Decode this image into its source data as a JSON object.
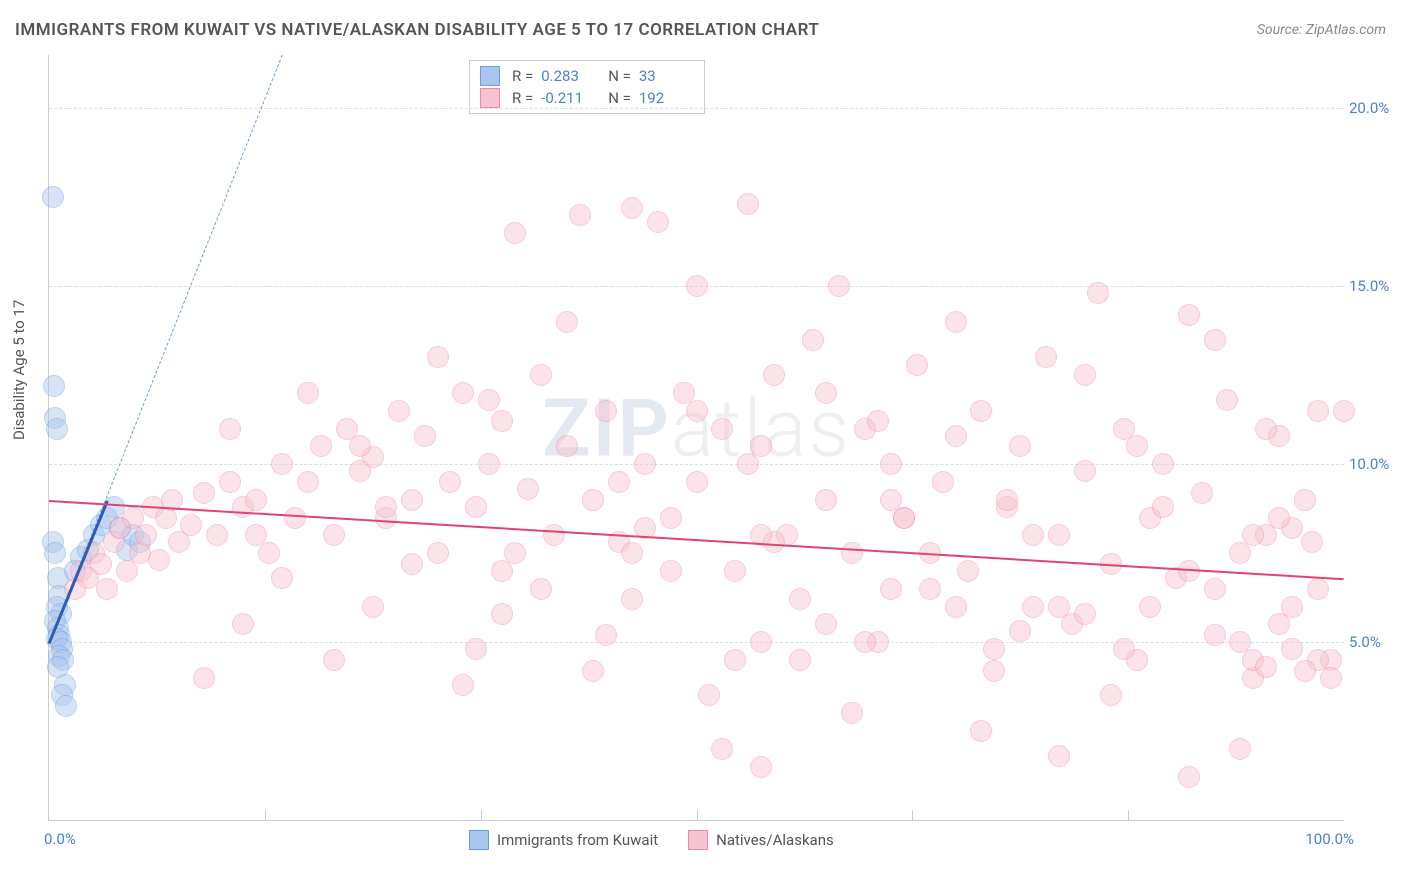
{
  "title": "IMMIGRANTS FROM KUWAIT VS NATIVE/ALASKAN DISABILITY AGE 5 TO 17 CORRELATION CHART",
  "source": "Source: ZipAtlas.com",
  "y_axis_label": "Disability Age 5 to 17",
  "watermark": {
    "left": "ZIP",
    "right": "atlas"
  },
  "plot": {
    "x_domain": [
      0,
      100
    ],
    "y_domain": [
      0,
      21.5
    ],
    "y_ticks": [
      5.0,
      10.0,
      15.0,
      20.0
    ],
    "y_tick_labels": [
      "5.0%",
      "10.0%",
      "15.0%",
      "20.0%"
    ],
    "x_ticks_minor": [
      16.67,
      33.33,
      50.0,
      66.67,
      83.33
    ],
    "x_tick_first": "0.0%",
    "x_tick_last": "100.0%",
    "grid_color": "#dddddd",
    "point_radius": 10,
    "point_opacity": 0.45
  },
  "series": [
    {
      "id": "kuwait",
      "label": "Immigrants from Kuwait",
      "color_fill": "#a8c5ed",
      "color_stroke": "#6a9be0",
      "R": "0.283",
      "N": "33",
      "trend": {
        "x1": 0,
        "y1": 5.0,
        "x2": 4.5,
        "y2": 9.0,
        "color": "#2d5db2",
        "width": 3
      },
      "trend_dashed": {
        "x1": 0,
        "y1": 5.0,
        "x2": 18,
        "y2": 21.5,
        "color": "#6a9be0"
      },
      "points": [
        [
          0.3,
          17.5
        ],
        [
          0.4,
          12.2
        ],
        [
          0.5,
          11.3
        ],
        [
          0.6,
          11.0
        ],
        [
          0.3,
          7.8
        ],
        [
          0.5,
          7.5
        ],
        [
          0.7,
          6.8
        ],
        [
          0.8,
          6.3
        ],
        [
          0.6,
          6.0
        ],
        [
          0.9,
          5.8
        ],
        [
          0.5,
          5.6
        ],
        [
          0.7,
          5.4
        ],
        [
          0.8,
          5.2
        ],
        [
          0.6,
          5.1
        ],
        [
          0.9,
          5.0
        ],
        [
          1.0,
          4.8
        ],
        [
          0.8,
          4.6
        ],
        [
          1.1,
          4.5
        ],
        [
          0.7,
          4.3
        ],
        [
          1.2,
          3.8
        ],
        [
          1.0,
          3.5
        ],
        [
          1.3,
          3.2
        ],
        [
          2.0,
          7.0
        ],
        [
          2.5,
          7.4
        ],
        [
          3.0,
          7.6
        ],
        [
          3.5,
          8.0
        ],
        [
          4.0,
          8.3
        ],
        [
          4.5,
          8.5
        ],
        [
          5.0,
          8.8
        ],
        [
          5.5,
          8.2
        ],
        [
          6.0,
          7.6
        ],
        [
          6.5,
          8.0
        ],
        [
          7.0,
          7.8
        ]
      ]
    },
    {
      "id": "natives",
      "label": "Natives/Alaskans",
      "color_fill": "#f7c2cf",
      "color_stroke": "#ed8ba6",
      "R": "-0.211",
      "N": "192",
      "trend": {
        "x1": 0,
        "y1": 9.0,
        "x2": 100,
        "y2": 6.8,
        "color": "#e0446f",
        "width": 2
      },
      "points": [
        [
          2,
          6.5
        ],
        [
          2.5,
          7.0
        ],
        [
          3,
          6.8
        ],
        [
          3.5,
          7.5
        ],
        [
          4,
          7.2
        ],
        [
          4.5,
          6.5
        ],
        [
          5,
          7.8
        ],
        [
          5.5,
          8.2
        ],
        [
          6,
          7.0
        ],
        [
          6.5,
          8.5
        ],
        [
          7,
          7.5
        ],
        [
          7.5,
          8.0
        ],
        [
          8,
          8.8
        ],
        [
          8.5,
          7.3
        ],
        [
          9,
          8.5
        ],
        [
          9.5,
          9.0
        ],
        [
          10,
          7.8
        ],
        [
          11,
          8.3
        ],
        [
          12,
          9.2
        ],
        [
          13,
          8.0
        ],
        [
          14,
          9.5
        ],
        [
          15,
          8.8
        ],
        [
          16,
          9.0
        ],
        [
          17,
          7.5
        ],
        [
          18,
          10.0
        ],
        [
          19,
          8.5
        ],
        [
          20,
          9.5
        ],
        [
          21,
          10.5
        ],
        [
          22,
          8.0
        ],
        [
          23,
          11.0
        ],
        [
          24,
          9.8
        ],
        [
          25,
          10.2
        ],
        [
          26,
          8.5
        ],
        [
          27,
          11.5
        ],
        [
          28,
          9.0
        ],
        [
          29,
          10.8
        ],
        [
          30,
          7.5
        ],
        [
          31,
          9.5
        ],
        [
          32,
          12.0
        ],
        [
          33,
          8.8
        ],
        [
          34,
          10.0
        ],
        [
          35,
          11.2
        ],
        [
          36,
          16.5
        ],
        [
          37,
          9.3
        ],
        [
          38,
          12.5
        ],
        [
          39,
          8.0
        ],
        [
          40,
          10.5
        ],
        [
          41,
          17.0
        ],
        [
          42,
          9.0
        ],
        [
          43,
          11.5
        ],
        [
          44,
          7.8
        ],
        [
          45,
          17.2
        ],
        [
          46,
          10.0
        ],
        [
          47,
          16.8
        ],
        [
          48,
          8.5
        ],
        [
          49,
          12.0
        ],
        [
          50,
          9.5
        ],
        [
          51,
          3.5
        ],
        [
          52,
          11.0
        ],
        [
          53,
          7.0
        ],
        [
          54,
          17.3
        ],
        [
          55,
          10.5
        ],
        [
          56,
          12.5
        ],
        [
          57,
          8.0
        ],
        [
          58,
          4.5
        ],
        [
          59,
          13.5
        ],
        [
          60,
          9.0
        ],
        [
          61,
          15.0
        ],
        [
          62,
          7.5
        ],
        [
          63,
          11.0
        ],
        [
          64,
          5.0
        ],
        [
          65,
          10.0
        ],
        [
          66,
          8.5
        ],
        [
          67,
          12.8
        ],
        [
          68,
          6.5
        ],
        [
          69,
          9.5
        ],
        [
          70,
          14.0
        ],
        [
          71,
          7.0
        ],
        [
          72,
          11.5
        ],
        [
          73,
          4.8
        ],
        [
          74,
          8.8
        ],
        [
          75,
          10.5
        ],
        [
          76,
          6.0
        ],
        [
          77,
          13.0
        ],
        [
          78,
          8.0
        ],
        [
          79,
          5.5
        ],
        [
          80,
          9.8
        ],
        [
          81,
          14.8
        ],
        [
          82,
          7.2
        ],
        [
          83,
          11.0
        ],
        [
          84,
          4.5
        ],
        [
          85,
          8.5
        ],
        [
          86,
          10.0
        ],
        [
          87,
          6.8
        ],
        [
          88,
          14.2
        ],
        [
          89,
          9.2
        ],
        [
          90,
          5.2
        ],
        [
          91,
          11.8
        ],
        [
          92,
          7.5
        ],
        [
          93,
          4.0
        ],
        [
          94,
          8.0
        ],
        [
          95,
          10.8
        ],
        [
          96,
          6.0
        ],
        [
          97,
          9.0
        ],
        [
          98,
          11.5
        ],
        [
          99,
          4.5
        ],
        [
          97.5,
          7.8
        ],
        [
          15,
          5.5
        ],
        [
          25,
          6.0
        ],
        [
          35,
          5.8
        ],
        [
          45,
          6.2
        ],
        [
          55,
          5.0
        ],
        [
          65,
          6.5
        ],
        [
          75,
          5.3
        ],
        [
          85,
          6.0
        ],
        [
          95,
          5.5
        ],
        [
          20,
          12.0
        ],
        [
          30,
          13.0
        ],
        [
          40,
          14.0
        ],
        [
          50,
          11.5
        ],
        [
          60,
          12.0
        ],
        [
          70,
          10.8
        ],
        [
          80,
          12.5
        ],
        [
          90,
          13.5
        ],
        [
          12,
          4.0
        ],
        [
          22,
          4.5
        ],
        [
          32,
          3.8
        ],
        [
          42,
          4.2
        ],
        [
          52,
          2.0
        ],
        [
          62,
          3.0
        ],
        [
          72,
          2.5
        ],
        [
          82,
          3.5
        ],
        [
          92,
          2.0
        ],
        [
          18,
          6.8
        ],
        [
          28,
          7.2
        ],
        [
          38,
          6.5
        ],
        [
          48,
          7.0
        ],
        [
          58,
          6.2
        ],
        [
          68,
          7.5
        ],
        [
          78,
          6.0
        ],
        [
          88,
          7.0
        ],
        [
          98,
          6.5
        ],
        [
          14,
          11.0
        ],
        [
          24,
          10.5
        ],
        [
          34,
          11.8
        ],
        [
          44,
          9.5
        ],
        [
          54,
          10.0
        ],
        [
          64,
          11.2
        ],
        [
          74,
          9.0
        ],
        [
          84,
          10.5
        ],
        [
          94,
          11.0
        ],
        [
          16,
          8.0
        ],
        [
          26,
          8.8
        ],
        [
          36,
          7.5
        ],
        [
          46,
          8.2
        ],
        [
          56,
          7.8
        ],
        [
          66,
          8.5
        ],
        [
          76,
          8.0
        ],
        [
          86,
          8.8
        ],
        [
          96,
          8.2
        ],
        [
          55,
          1.5
        ],
        [
          78,
          1.8
        ],
        [
          88,
          1.2
        ],
        [
          33,
          4.8
        ],
        [
          43,
          5.2
        ],
        [
          53,
          4.5
        ],
        [
          63,
          5.0
        ],
        [
          73,
          4.2
        ],
        [
          83,
          4.8
        ],
        [
          93,
          4.5
        ],
        [
          50,
          15.0
        ],
        [
          60,
          5.5
        ],
        [
          70,
          6.0
        ],
        [
          80,
          5.8
        ],
        [
          90,
          6.5
        ],
        [
          35,
          7.0
        ],
        [
          45,
          7.5
        ],
        [
          55,
          8.0
        ],
        [
          65,
          9.0
        ],
        [
          100,
          11.5
        ],
        [
          99,
          4.0
        ],
        [
          98,
          4.5
        ],
        [
          97,
          4.2
        ],
        [
          96,
          4.8
        ],
        [
          95,
          8.5
        ],
        [
          94,
          4.3
        ],
        [
          93,
          8.0
        ],
        [
          92,
          5.0
        ]
      ]
    }
  ],
  "legend_bottom": [
    {
      "label": "Immigrants from Kuwait",
      "fill": "#a8c5ed",
      "stroke": "#6a9be0"
    },
    {
      "label": "Natives/Alaskans",
      "fill": "#f7c2cf",
      "stroke": "#ed8ba6"
    }
  ]
}
